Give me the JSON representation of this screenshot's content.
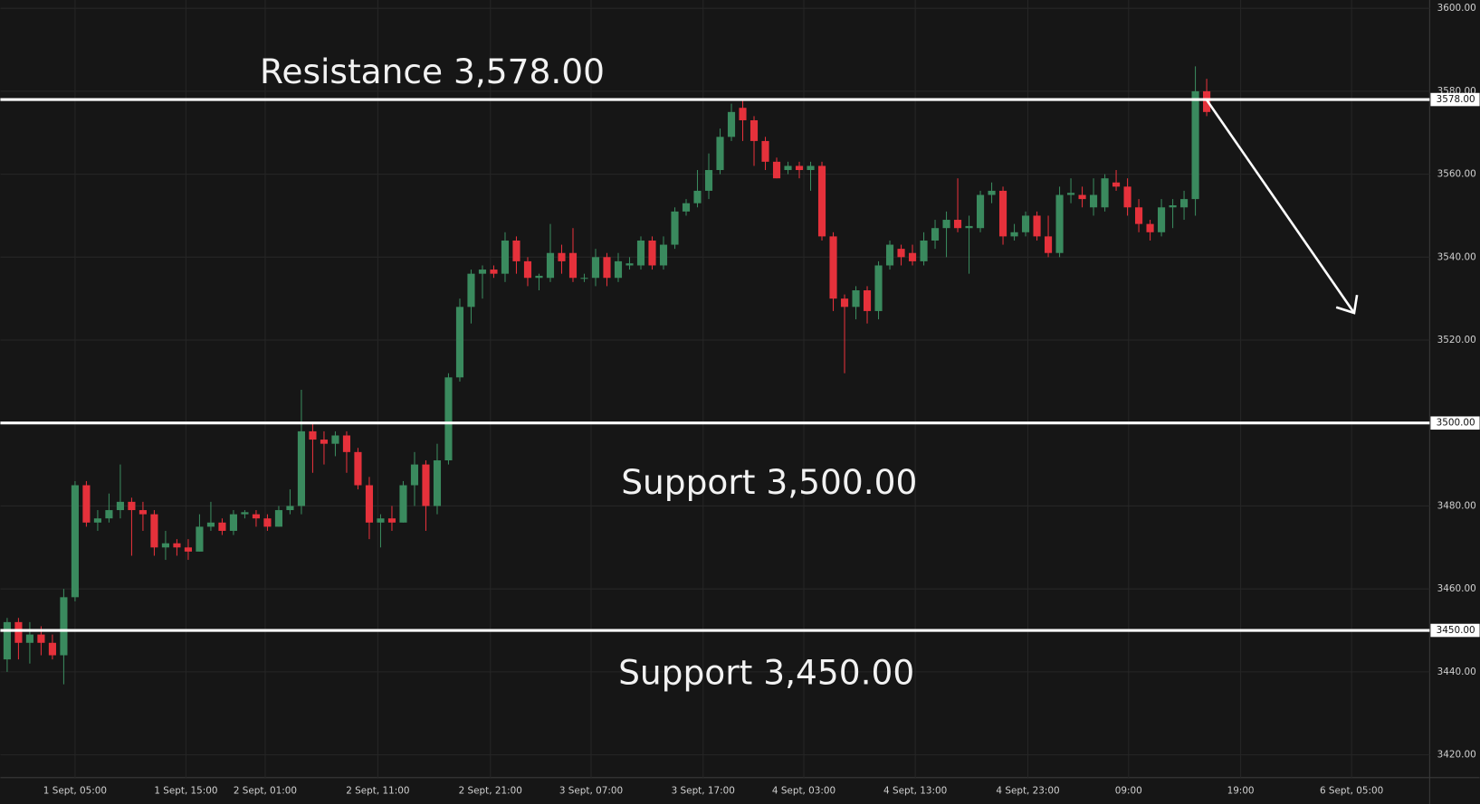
{
  "chart_data": {
    "type": "candlestick",
    "up_color": "#3a8a5e",
    "down_color": "#e5313b",
    "xlim": [
      -0.6,
      125.7
    ],
    "ylim": [
      3414.5,
      3602
    ],
    "grid": true,
    "open": [
      3443,
      3452,
      3447,
      3449,
      3447,
      3444,
      3458,
      3485,
      3476,
      3477,
      3479,
      3481,
      3479,
      3478,
      3470,
      3471,
      3470,
      3469,
      3475,
      3476,
      3474,
      3478,
      3478,
      3477,
      3475,
      3479,
      3480,
      3498,
      3496,
      3495,
      3497,
      3493,
      3485,
      3476,
      3477,
      3476,
      3485,
      3490,
      3480,
      3491,
      3511,
      3528,
      3536,
      3537,
      3536,
      3544,
      3539,
      3535,
      3535,
      3541,
      3541,
      3535,
      3535,
      3540,
      3535,
      3538,
      3538,
      3544,
      3538,
      3543,
      3551,
      3553,
      3556,
      3561,
      3569,
      3576,
      3573,
      3568,
      3563,
      3561,
      3562,
      3561,
      3562,
      3545,
      3530,
      3528,
      3532,
      3527,
      3538,
      3542,
      3541,
      3539,
      3544,
      3547,
      3549,
      3547,
      3547,
      3555,
      3556,
      3545,
      3546,
      3550,
      3545,
      3541,
      3555,
      3555,
      3552,
      3552,
      3558,
      3557,
      3552,
      3548,
      3546,
      3552,
      3552,
      3554,
      3580
    ],
    "high": [
      3453,
      3453,
      3452,
      3451,
      3449,
      3460,
      3486,
      3486,
      3479,
      3483,
      3490,
      3482,
      3481,
      3479,
      3474,
      3472,
      3472,
      3478,
      3481,
      3477,
      3479,
      3479,
      3479,
      3478,
      3480,
      3484,
      3508,
      3500,
      3498,
      3498,
      3498,
      3494,
      3487,
      3478,
      3480,
      3486,
      3493,
      3491,
      3495,
      3512,
      3530,
      3537,
      3538,
      3538,
      3546,
      3545,
      3540,
      3536,
      3548,
      3543,
      3547,
      3536,
      3542,
      3541,
      3541,
      3540,
      3545,
      3545,
      3545,
      3552,
      3554,
      3561,
      3565,
      3571,
      3577,
      3578,
      3574,
      3569,
      3564,
      3563,
      3563,
      3563,
      3563,
      3546,
      3531,
      3533,
      3533,
      3539,
      3544,
      3543,
      3543,
      3546,
      3549,
      3551,
      3559,
      3550,
      3556,
      3558,
      3557,
      3548,
      3551,
      3551,
      3550,
      3557,
      3559,
      3557,
      3559,
      3560,
      3561,
      3559,
      3554,
      3549,
      3554,
      3554,
      3556,
      3586,
      3583
    ],
    "low": [
      3440,
      3443,
      3442,
      3444,
      3443,
      3437,
      3457,
      3475,
      3474,
      3476,
      3477,
      3468,
      3474,
      3468,
      3467,
      3468,
      3467,
      3469,
      3474,
      3473,
      3473,
      3477,
      3475,
      3474,
      3475,
      3478,
      3478,
      3488,
      3490,
      3492,
      3488,
      3484,
      3472,
      3470,
      3474,
      3476,
      3480,
      3474,
      3478,
      3490,
      3510,
      3524,
      3530,
      3535,
      3534,
      3536,
      3533,
      3532,
      3534,
      3536,
      3534,
      3534,
      3533,
      3533,
      3534,
      3537,
      3537,
      3537,
      3537,
      3542,
      3550,
      3552,
      3554,
      3560,
      3568,
      3568,
      3562,
      3561,
      3559,
      3560,
      3559,
      3556,
      3544,
      3527,
      3512,
      3525,
      3524,
      3525,
      3537,
      3538,
      3538,
      3538,
      3542,
      3540,
      3546,
      3536,
      3546,
      3553,
      3543,
      3544,
      3545,
      3544,
      3540,
      3540,
      3553,
      3552,
      3550,
      3551,
      3556,
      3550,
      3546,
      3544,
      3545,
      3547,
      3549,
      3550,
      3574
    ],
    "close": [
      3452,
      3447,
      3449,
      3447,
      3444,
      3458,
      3485,
      3476,
      3477,
      3479,
      3481,
      3479,
      3478,
      3470,
      3471,
      3470,
      3469,
      3475,
      3476,
      3474,
      3478,
      3478.5,
      3477,
      3475,
      3479,
      3480,
      3498,
      3496,
      3495,
      3497,
      3493,
      3485,
      3476,
      3477,
      3476,
      3485,
      3490,
      3480,
      3491,
      3511,
      3528,
      3536,
      3537,
      3536,
      3544,
      3539,
      3535,
      3535.5,
      3541,
      3539,
      3535,
      3535,
      3540,
      3535,
      3539,
      3538.5,
      3544,
      3538,
      3543,
      3551,
      3553,
      3556,
      3561,
      3569,
      3575,
      3573,
      3568,
      3563,
      3559,
      3562,
      3561,
      3562,
      3545,
      3530,
      3528,
      3532,
      3527,
      3538,
      3543,
      3540,
      3539,
      3544,
      3547,
      3549,
      3547,
      3547.5,
      3555,
      3556,
      3545,
      3546,
      3550,
      3545,
      3541,
      3555,
      3555.5,
      3554,
      3555,
      3559,
      3557,
      3552,
      3548,
      3546,
      3552,
      3552.5,
      3554,
      3580,
      3575
    ],
    "yticks": [
      {
        "value": 3420,
        "label": "3420.00"
      },
      {
        "value": 3440,
        "label": "3440.00"
      },
      {
        "value": 3460,
        "label": "3460.00"
      },
      {
        "value": 3480,
        "label": "3480.00"
      },
      {
        "value": 3500,
        "label": "3500.00"
      },
      {
        "value": 3520,
        "label": "3520.00"
      },
      {
        "value": 3540,
        "label": "3540.00"
      },
      {
        "value": 3560,
        "label": "3560.00"
      },
      {
        "value": 3580,
        "label": "3580.00"
      },
      {
        "value": 3600,
        "label": "3600.00"
      }
    ],
    "xticks": [
      {
        "value": 6,
        "label": "1 Sept, 05:00"
      },
      {
        "value": 15.8,
        "label": "1 Sept, 15:00"
      },
      {
        "value": 22.8,
        "label": "2 Sept, 01:00"
      },
      {
        "value": 32.75,
        "label": "2 Sept, 11:00"
      },
      {
        "value": 42.7,
        "label": "2 Sept, 21:00"
      },
      {
        "value": 51.6,
        "label": "3 Sept, 07:00"
      },
      {
        "value": 61.5,
        "label": "3 Sept, 17:00"
      },
      {
        "value": 70.4,
        "label": "4 Sept, 03:00"
      },
      {
        "value": 80.25,
        "label": "4 Sept, 13:00"
      },
      {
        "value": 90.2,
        "label": "4 Sept, 23:00"
      },
      {
        "value": 99.1,
        "label": "09:00"
      },
      {
        "value": 109,
        "label": "19:00"
      },
      {
        "value": 118.8,
        "label": "6 Sept, 05:00"
      }
    ],
    "levels": [
      {
        "value": 3578,
        "label": "3578.00",
        "annotation": "Resistance 3,578.00"
      },
      {
        "value": 3500,
        "label": "3500.00",
        "annotation": "Support 3,500.00"
      },
      {
        "value": 3450,
        "label": "3450.00",
        "annotation": "Support 3,450.00"
      }
    ]
  }
}
